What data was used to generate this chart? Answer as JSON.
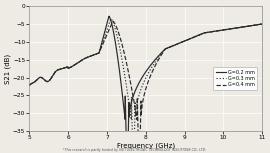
{
  "xlabel": "Frequency (GHz)",
  "ylabel": "S21 (dB)",
  "xlim": [
    5,
    11
  ],
  "ylim": [
    -35,
    0
  ],
  "xticks": [
    5,
    6,
    7,
    8,
    9,
    10,
    11
  ],
  "yticks": [
    0,
    -5,
    -10,
    -15,
    -20,
    -25,
    -30,
    -35
  ],
  "legend": [
    "G=0.2 mm",
    "G=0.3 mm",
    "G=0.4 mm"
  ],
  "legend_styles": [
    "solid",
    "dotted",
    "dashed"
  ],
  "footnote": "*This research is partly funded by VIET ELECTRONIC TECHNOLOGY SOLUTIONS CO., LTD.",
  "bg_color": "#eeebe5",
  "line_color": "#2a2a2a",
  "grid_color": "#ffffff",
  "g_values": [
    0.2,
    0.3,
    0.4
  ],
  "notch_centers": [
    7.52,
    7.68,
    7.83
  ],
  "notch_depths": [
    34,
    34,
    34
  ],
  "peak_freqs": [
    7.05,
    7.1,
    7.15
  ],
  "peak_vals": [
    -2.8,
    -3.5,
    -4.2
  ]
}
